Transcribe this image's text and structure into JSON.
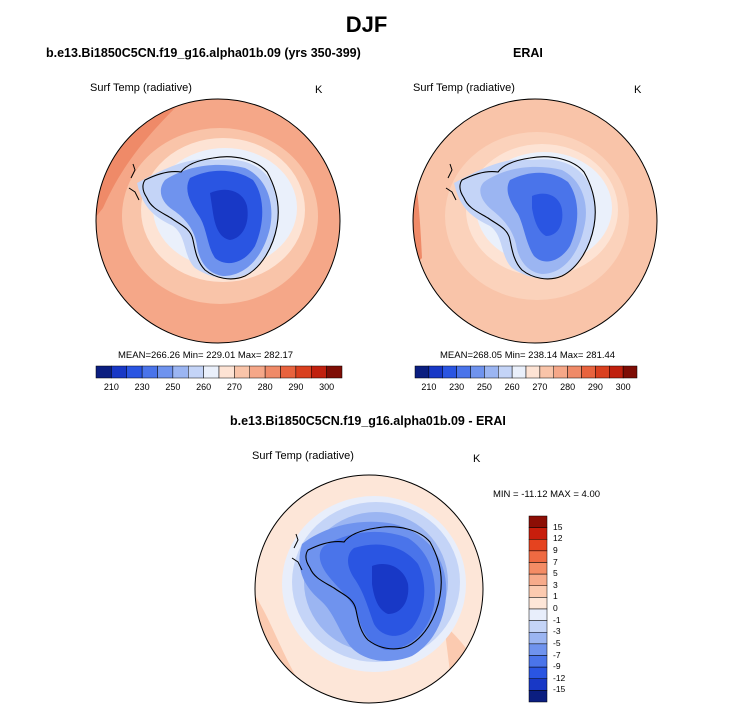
{
  "figure": {
    "title": "DJF",
    "colors": {
      "deep_blue": "#1f3fd8",
      "mid_blue": "#5a82e8",
      "light_blue": "#b6ccf4",
      "ice_white": "#eef2fb",
      "pale_orange": "#fbd2bb",
      "orange": "#f5a788",
      "deep_orange": "#e8633e",
      "red": "#c81e0c"
    }
  },
  "panels": [
    {
      "id": "model",
      "title": "b.e13.Bi1850C5CN.f19_g16.alpha01b.09 (yrs 350-399)",
      "variable": "Surf Temp (radiative)",
      "units": "K",
      "stats": "MEAN=266.26  Min= 229.01  Max= 282.17",
      "map_icon": "antarctica-polar-map-icon"
    },
    {
      "id": "obs",
      "title": "ERAI",
      "variable": "Surf Temp (radiative)",
      "units": "K",
      "stats": "MEAN=268.05  Min= 238.14  Max= 281.44",
      "map_icon": "antarctica-polar-map-icon"
    },
    {
      "id": "diff",
      "title": "b.e13.Bi1850C5CN.f19_g16.alpha01b.09 - ERAI",
      "variable": "Surf Temp (radiative)",
      "units": "K",
      "stats": "MIN = -11.12 MAX =   4.00",
      "map_icon": "antarctica-polar-map-icon"
    }
  ],
  "abs_colorbar": {
    "ticks": [
      "210",
      "230",
      "250",
      "260",
      "270",
      "280",
      "290",
      "300"
    ],
    "colors": [
      "#0b1e80",
      "#1838c6",
      "#2a55e2",
      "#4a74ea",
      "#6f93ee",
      "#9bb5f2",
      "#c4d4f7",
      "#eaf0fb",
      "#fde3d4",
      "#f9c4a9",
      "#f5a788",
      "#ef8a68",
      "#e8633e",
      "#d9401f",
      "#c0200e",
      "#7e0d05"
    ]
  },
  "diff_colorbar": {
    "labels": [
      "15",
      "12",
      "9",
      "7",
      "5",
      "3",
      "1",
      "0",
      "-1",
      "-3",
      "-5",
      "-7",
      "-9",
      "-12",
      "-15"
    ],
    "colors": [
      "#8c0e05",
      "#c81e0c",
      "#e5431f",
      "#ef6a42",
      "#f48c65",
      "#f7ab8b",
      "#fbcab0",
      "#fde6d8",
      "#e8eefb",
      "#c4d4f7",
      "#9bb5f2",
      "#6f93ee",
      "#4a74ea",
      "#2a55e2",
      "#1838c6",
      "#0b1e80"
    ]
  }
}
